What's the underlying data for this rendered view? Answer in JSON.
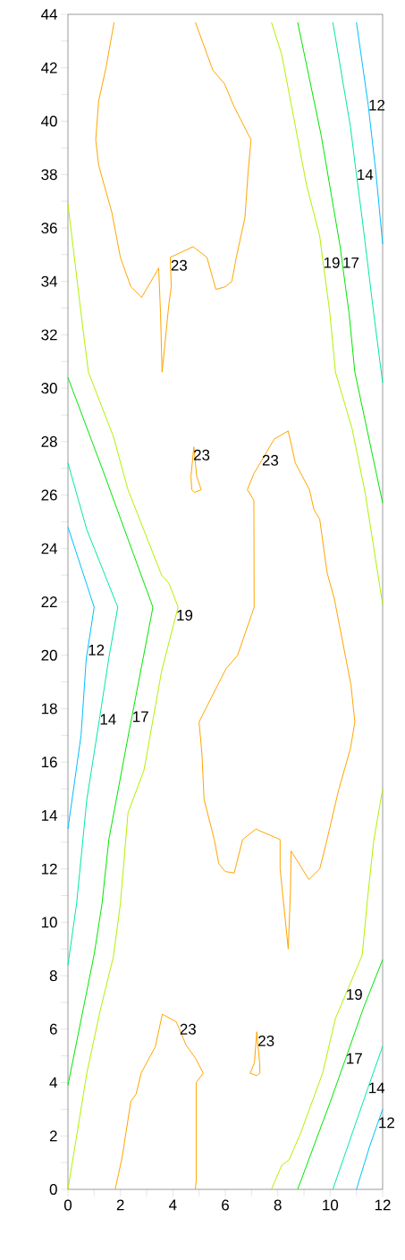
{
  "chart_data": {
    "type": "line",
    "xlim": [
      0,
      12
    ],
    "ylim": [
      0,
      44
    ],
    "xticks": [
      0,
      {
        "value": 1,
        "label": null
      },
      2,
      {
        "value": 3,
        "label": null
      },
      4,
      {
        "value": 5,
        "label": null
      },
      6,
      {
        "value": 7,
        "label": null
      },
      8,
      {
        "value": 9,
        "label": null
      },
      10,
      {
        "value": 11,
        "label": null
      },
      12
    ],
    "yticks": [
      0,
      {
        "value": 1,
        "label": null
      },
      2,
      {
        "value": 3,
        "label": null
      },
      4,
      {
        "value": 5,
        "label": null
      },
      6,
      {
        "value": 7,
        "label": null
      },
      8,
      {
        "value": 9,
        "label": null
      },
      10,
      {
        "value": 11,
        "label": null
      },
      12,
      {
        "value": 13,
        "label": null
      },
      14,
      {
        "value": 15,
        "label": null
      },
      16,
      {
        "value": 17,
        "label": null
      },
      18,
      {
        "value": 19,
        "label": null
      },
      20,
      {
        "value": 21,
        "label": null
      },
      22,
      {
        "value": 23,
        "label": null
      },
      24,
      {
        "value": 25,
        "label": null
      },
      26,
      {
        "value": 27,
        "label": null
      },
      28,
      {
        "value": 29,
        "label": null
      },
      30,
      {
        "value": 31,
        "label": null
      },
      32,
      {
        "value": 33,
        "label": null
      },
      34,
      {
        "value": 35,
        "label": null
      },
      36,
      {
        "value": 37,
        "label": null
      },
      38,
      {
        "value": 39,
        "label": null
      },
      40,
      {
        "value": 41,
        "label": null
      },
      42,
      {
        "value": 43,
        "label": null
      },
      44
    ],
    "series": [
      {
        "color": "#00bfff",
        "x": [
          11.0,
          11.45,
          11.75,
          12
        ],
        "values": [
          43.7,
          40.6,
          38.0,
          35.4
        ]
      },
      {
        "color": "#00bfff",
        "x": [
          0,
          1.0,
          0.75,
          0.7,
          0.5,
          0
        ],
        "values": [
          24.8,
          21.8,
          20.2,
          19.9,
          17.0,
          13.5
        ]
      },
      {
        "color": "#00bfff",
        "x": [
          11.0,
          11.5,
          11.82,
          12
        ],
        "values": [
          0,
          1.6,
          2.5,
          3.0
        ]
      },
      {
        "color": "#00e8a8",
        "x": [
          10.1,
          10.77,
          11.0,
          11.2,
          11.66,
          12
        ],
        "values": [
          43.7,
          39.8,
          38.0,
          36.5,
          32.8,
          30.2
        ]
      },
      {
        "color": "#00e8a8",
        "x": [
          0,
          0.72,
          1.9,
          1.56,
          1.2,
          0.72,
          0.33,
          0
        ],
        "values": [
          27.2,
          24.7,
          21.8,
          19.9,
          17.6,
          14.6,
          10.7,
          8.4
        ]
      },
      {
        "color": "#00e8a8",
        "x": [
          10.1,
          11.44,
          12
        ],
        "values": [
          0,
          3.8,
          5.36
        ]
      },
      {
        "color": "#00e800",
        "x": [
          8.76,
          9.65,
          10.38,
          10.46,
          10.72,
          10.94,
          12
        ],
        "values": [
          43.7,
          39.5,
          35.3,
          34.7,
          32.8,
          30.6,
          25.7
        ]
      },
      {
        "color": "#00e800",
        "x": [
          0,
          1.34,
          3.24,
          2.44,
          2.34,
          1.56,
          1.3,
          1.0,
          0
        ],
        "values": [
          30.4,
          26.9,
          21.8,
          17.7,
          17.2,
          13.1,
          10.7,
          8.8,
          3.9
        ]
      },
      {
        "color": "#00e800",
        "x": [
          8.76,
          9.99,
          10.59,
          11.27,
          12
        ],
        "values": [
          0,
          3.24,
          4.9,
          6.8,
          8.6
        ]
      },
      {
        "color": "#b4f000",
        "x": [
          7.76,
          8.15,
          9.1,
          9.6,
          9.73,
          9.99,
          10.2,
          10.83,
          11.33,
          12
        ],
        "values": [
          43.7,
          42.5,
          37.6,
          35.7,
          34.7,
          32.8,
          30.6,
          28.5,
          26.1,
          21.9
        ]
      },
      {
        "color": "#b4f000",
        "x": [
          0,
          0.5,
          0.78,
          1.73,
          2.29,
          3.57,
          3.85,
          4.2,
          4.12,
          3.57,
          2.9,
          2.29,
          2.0,
          1.73,
          1.23,
          0.72,
          0
        ],
        "values": [
          36.9,
          32.8,
          30.6,
          28.2,
          26.2,
          23.0,
          22.7,
          21.8,
          21.5,
          19.4,
          15.7,
          14.1,
          10.7,
          8.7,
          6.7,
          4.35,
          0
        ]
      },
      {
        "color": "#b4f000",
        "x": [
          7.76,
          8.15,
          8.43,
          8.87,
          9.71,
          10.2,
          10.59,
          11.22,
          11.44,
          11.66,
          12
        ],
        "values": [
          0,
          0.9,
          1.1,
          2.1,
          4.35,
          6.4,
          7.3,
          8.77,
          11.05,
          13.06,
          15.0
        ]
      },
      {
        "color": "#ffa500",
        "x": [
          1.76,
          1.45,
          1.17,
          1.06,
          1.17,
          1.67,
          2.0,
          2.4,
          2.81,
          3.46,
          3.53,
          3.59,
          3.85,
          3.94,
          3.91,
          3.9,
          4.77,
          5.3,
          5.64,
          6.0,
          6.25,
          6.42,
          6.75,
          6.87,
          6.98,
          6.31,
          5.97,
          5.53,
          4.86
        ],
        "values": [
          43.7,
          42.0,
          40.75,
          39.3,
          38.35,
          36.6,
          34.9,
          33.8,
          33.4,
          34.5,
          32.8,
          30.6,
          33.15,
          33.8,
          34.6,
          34.9,
          35.3,
          34.9,
          33.7,
          33.8,
          34.0,
          34.9,
          36.4,
          38.1,
          39.3,
          40.6,
          41.4,
          41.9,
          43.7
        ]
      },
      {
        "color": "#ffa500",
        "x": [
          4.8,
          4.77,
          4.69,
          4.72,
          4.83
        ],
        "values": [
          27.8,
          27.5,
          26.7,
          26.2,
          26.1
        ]
      },
      {
        "color": "#ffa500",
        "x": [
          4.83,
          5.08,
          4.91,
          4.8
        ],
        "values": [
          26.1,
          26.2,
          26.7,
          27.8
        ]
      },
      {
        "color": "#ffa500",
        "x": [
          8.4,
          7.87,
          7.39,
          7.09,
          6.84,
          7.09,
          7.1,
          6.47,
          6.03,
          5.64,
          5.0,
          5.11,
          5.19,
          5.58,
          5.75,
          6.0,
          6.34,
          6.66,
          7.18,
          7.26,
          8.09,
          8.09,
          8.4
        ],
        "values": [
          28.4,
          28.1,
          27.3,
          26.8,
          26.2,
          25.8,
          21.8,
          20.0,
          19.5,
          18.75,
          17.5,
          16.3,
          14.6,
          13.1,
          12.2,
          11.9,
          11.85,
          13.1,
          13.5,
          13.45,
          13.1,
          12.0,
          9.0
        ]
      },
      {
        "color": "#ffa500",
        "x": [
          8.4,
          8.48,
          8.51,
          9.19,
          9.6,
          9.82,
          10.32,
          10.77,
          10.94,
          10.79,
          10.16,
          9.88,
          9.6,
          9.38,
          9.21,
          8.67,
          8.4
        ],
        "values": [
          9.0,
          11.05,
          12.67,
          11.6,
          12.0,
          12.85,
          14.95,
          16.5,
          17.5,
          18.9,
          22.1,
          23.1,
          25.1,
          25.45,
          26.2,
          27.2,
          28.4
        ]
      },
      {
        "color": "#ffa500",
        "x": [
          1.8,
          2.06,
          2.4,
          2.6,
          2.79,
          3.33,
          3.6,
          4.13,
          4.25,
          4.5,
          4.86,
          5.16,
          4.89,
          4.89,
          4.86
        ],
        "values": [
          0,
          1.17,
          3.3,
          3.57,
          4.35,
          5.34,
          6.56,
          6.27,
          6.0,
          5.41,
          4.91,
          4.35,
          4.0,
          0.33,
          0
        ]
      },
      {
        "color": "#ffa500",
        "x": [
          7.2,
          7.23,
          7.31,
          7.32,
          7.2
        ],
        "values": [
          5.9,
          5.56,
          4.74,
          4.35,
          4.26
        ]
      },
      {
        "color": "#ffa500",
        "x": [
          7.2,
          6.95,
          7.11,
          7.2
        ],
        "values": [
          4.26,
          4.35,
          4.74,
          5.9
        ]
      }
    ],
    "annotations": [
      {
        "text": "12",
        "x": 11.45,
        "y": 40.6
      },
      {
        "text": "14",
        "x": 11.0,
        "y": 38.0
      },
      {
        "text": "19",
        "x": 9.73,
        "y": 34.7
      },
      {
        "text": "17",
        "x": 10.46,
        "y": 34.7
      },
      {
        "text": "23",
        "x": 3.91,
        "y": 34.6
      },
      {
        "text": "23",
        "x": 4.77,
        "y": 27.5
      },
      {
        "text": "23",
        "x": 7.39,
        "y": 27.3
      },
      {
        "text": "19",
        "x": 4.12,
        "y": 21.5
      },
      {
        "text": "12",
        "x": 0.75,
        "y": 20.2
      },
      {
        "text": "14",
        "x": 1.2,
        "y": 17.6
      },
      {
        "text": "17",
        "x": 2.44,
        "y": 17.7
      },
      {
        "text": "19",
        "x": 10.59,
        "y": 7.3
      },
      {
        "text": "23",
        "x": 4.25,
        "y": 6.0
      },
      {
        "text": "23",
        "x": 7.23,
        "y": 5.56
      },
      {
        "text": "17",
        "x": 10.59,
        "y": 4.9
      },
      {
        "text": "14",
        "x": 11.44,
        "y": 3.8
      },
      {
        "text": "12",
        "x": 11.82,
        "y": 2.5
      }
    ]
  }
}
